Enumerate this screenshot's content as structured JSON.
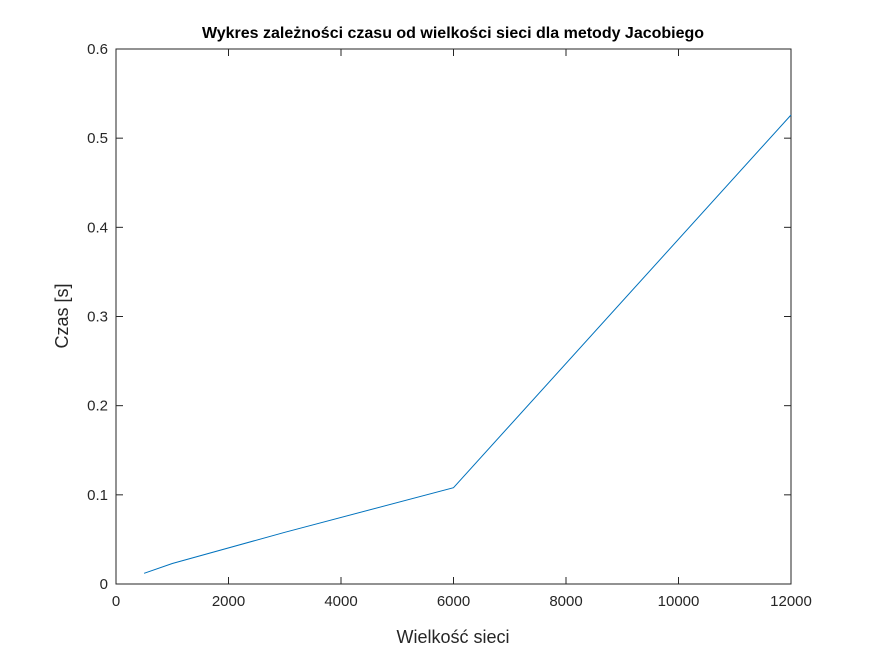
{
  "chart_data": {
    "type": "line",
    "title": "Wykres zależności czasu od wielkości sieci dla metody Jacobiego",
    "xlabel": "Wielkość sieci",
    "ylabel": "Czas [s]",
    "xlim": [
      0,
      12000
    ],
    "ylim": [
      0,
      0.6
    ],
    "xticks": [
      0,
      2000,
      4000,
      6000,
      8000,
      10000,
      12000
    ],
    "yticks": [
      0,
      0.1,
      0.2,
      0.3,
      0.4,
      0.5,
      0.6
    ],
    "grid": false,
    "series": [
      {
        "color": "#0072BD",
        "x": [
          500,
          1000,
          3000,
          6000,
          12000
        ],
        "y": [
          0.012,
          0.023,
          0.058,
          0.108,
          0.526
        ]
      }
    ]
  }
}
